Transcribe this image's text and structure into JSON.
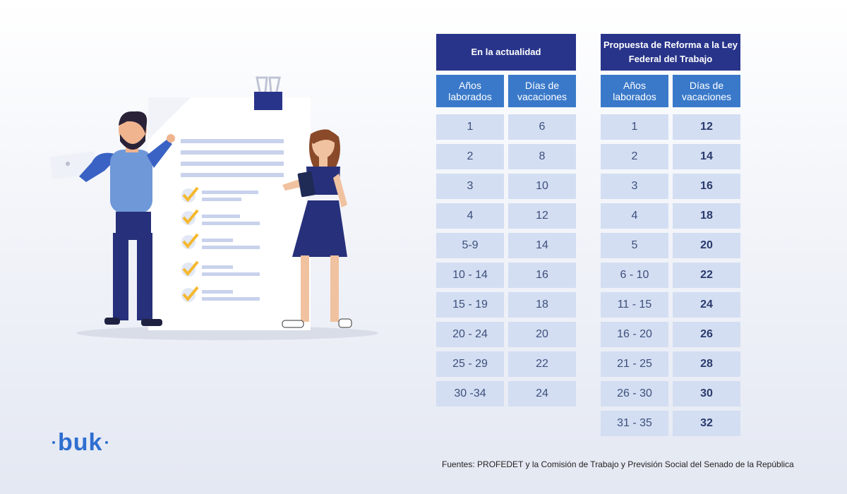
{
  "logo": {
    "text": "buk"
  },
  "tables": {
    "current": {
      "title": "En la actualidad",
      "col1": "Años laborados",
      "col2": "Días de vacaciones",
      "rows": [
        [
          "1",
          "6"
        ],
        [
          "2",
          "8"
        ],
        [
          "3",
          "10"
        ],
        [
          "4",
          "12"
        ],
        [
          "5-9",
          "14"
        ],
        [
          "10 - 14",
          "16"
        ],
        [
          "15 - 19",
          "18"
        ],
        [
          "20 - 24",
          "20"
        ],
        [
          "25 - 29",
          "22"
        ],
        [
          "30 -34",
          "24"
        ]
      ]
    },
    "proposal": {
      "title": "Propuesta de Reforma a la Ley Federal del Trabajo",
      "col1": "Años laborados",
      "col2": "Días de vacaciones",
      "rows": [
        [
          "1",
          "12"
        ],
        [
          "2",
          "14"
        ],
        [
          "3",
          "16"
        ],
        [
          "4",
          "18"
        ],
        [
          "5",
          "20"
        ],
        [
          "6 - 10",
          "22"
        ],
        [
          "11 - 15",
          "24"
        ],
        [
          "16 - 20",
          "26"
        ],
        [
          "21 - 25",
          "28"
        ],
        [
          "26 - 30",
          "30"
        ],
        [
          "31 - 35",
          "32"
        ]
      ]
    }
  },
  "footer": "Fuentes: PROFEDET y la Comisión de Trabajo y Previsión Social del Senado de la República",
  "colors": {
    "title_bg": "#28348a",
    "header_bg": "#3a79c9",
    "cell_bg": "#d3def2",
    "brand": "#2e6fd0",
    "check": "#f5b82e"
  }
}
